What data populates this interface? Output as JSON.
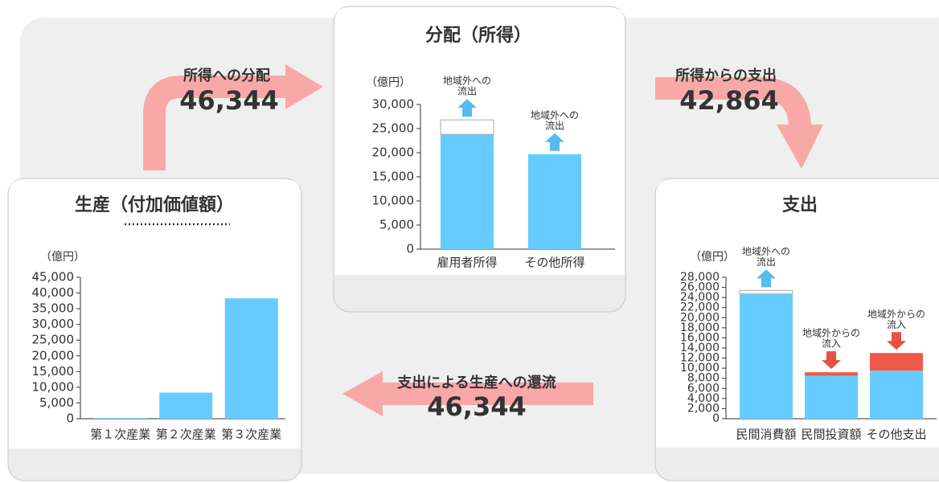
{
  "flows": [
    {
      "label": "所得への分配",
      "value": "46,344"
    },
    {
      "label": "所得からの支出",
      "value": "42,864"
    },
    {
      "label": "支出による生産への還流",
      "value": "46,344"
    }
  ],
  "chart_data": [
    {
      "type": "bar",
      "title": "生産（付加価値額）",
      "unit_label": "（億円）",
      "categories": [
        "第１次産業",
        "第２次産業",
        "第３次産業"
      ],
      "series": [
        {
          "color": "#66ccff",
          "values": [
            200,
            8300,
            38300
          ]
        }
      ],
      "ylim": [
        0,
        45000
      ],
      "yticks": [
        0,
        {
          "value": 5000,
          "label": "5,000"
        },
        {
          "value": 10000,
          "label": "10,000"
        },
        {
          "value": 15000,
          "label": "15,000"
        },
        {
          "value": 20000,
          "label": "20,000"
        },
        {
          "value": 25000,
          "label": "25,000"
        },
        {
          "value": 30000,
          "label": "30,000"
        },
        {
          "value": 35000,
          "label": "35,000"
        },
        {
          "value": 40000,
          "label": "40,000"
        },
        {
          "value": 45000,
          "label": "45,000"
        }
      ]
    },
    {
      "type": "bar",
      "title": "分配（所得）",
      "unit_label": "（億円）",
      "categories": [
        "雇用者所得",
        "その他所得"
      ],
      "series": [
        {
          "color": "#66ccff",
          "values": [
            23800,
            19700
          ]
        },
        {
          "color": "#ffffff",
          "stroke": "#aaaaaa",
          "values": [
            3000,
            null
          ],
          "arrow": "up",
          "arrow_color": "#55bbf0",
          "annotations": [
            [
              "地域外への",
              "流出"
            ],
            [
              "地域外への",
              "流出"
            ]
          ]
        }
      ],
      "ylim": [
        0,
        30000
      ],
      "yticks": [
        0,
        {
          "value": 5000,
          "label": "5,000"
        },
        {
          "value": 10000,
          "label": "10,000"
        },
        {
          "value": 15000,
          "label": "15,000"
        },
        {
          "value": 20000,
          "label": "20,000"
        },
        {
          "value": 25000,
          "label": "25,000"
        },
        {
          "value": 30000,
          "label": "30,000"
        }
      ]
    },
    {
      "type": "bar",
      "title": "支出",
      "unit_label": "（億円）",
      "categories": [
        "民間消費額",
        "民間投資額",
        "その他支出"
      ],
      "series": [
        {
          "color": "#66ccff",
          "values": [
            24700,
            8500,
            9500
          ]
        },
        {
          "color": "#ffffff",
          "stroke": "#aaaaaa",
          "values": [
            700,
            null,
            null
          ],
          "arrow": "up",
          "arrow_color": "#55bbf0",
          "annotations": [
            [
              "地域外への",
              "流出"
            ],
            null,
            null
          ]
        },
        {
          "color": "#ee5a4a",
          "values": [
            null,
            700,
            3500
          ],
          "arrow": "down",
          "arrow_color": "#e8503f",
          "annotations": [
            null,
            [
              "地域外からの",
              "流入"
            ],
            [
              "地域外からの",
              "流入"
            ]
          ]
        }
      ],
      "ylim": [
        0,
        28000
      ],
      "yticks": [
        0,
        {
          "value": 2000,
          "label": "2,000"
        },
        {
          "value": 4000,
          "label": "4,000"
        },
        {
          "value": 6000,
          "label": "6,000"
        },
        {
          "value": 8000,
          "label": "8,000"
        },
        {
          "value": 10000,
          "label": "10,000"
        },
        {
          "value": 12000,
          "label": "12,000"
        },
        {
          "value": 14000,
          "label": "14,000"
        },
        {
          "value": 16000,
          "label": "16,000"
        },
        {
          "value": 18000,
          "label": "18,000"
        },
        {
          "value": 20000,
          "label": "20,000"
        },
        {
          "value": 22000,
          "label": "22,000"
        },
        {
          "value": 24000,
          "label": "24,000"
        },
        {
          "value": 26000,
          "label": "26,000"
        },
        {
          "value": 28000,
          "label": "28,000"
        }
      ]
    }
  ]
}
